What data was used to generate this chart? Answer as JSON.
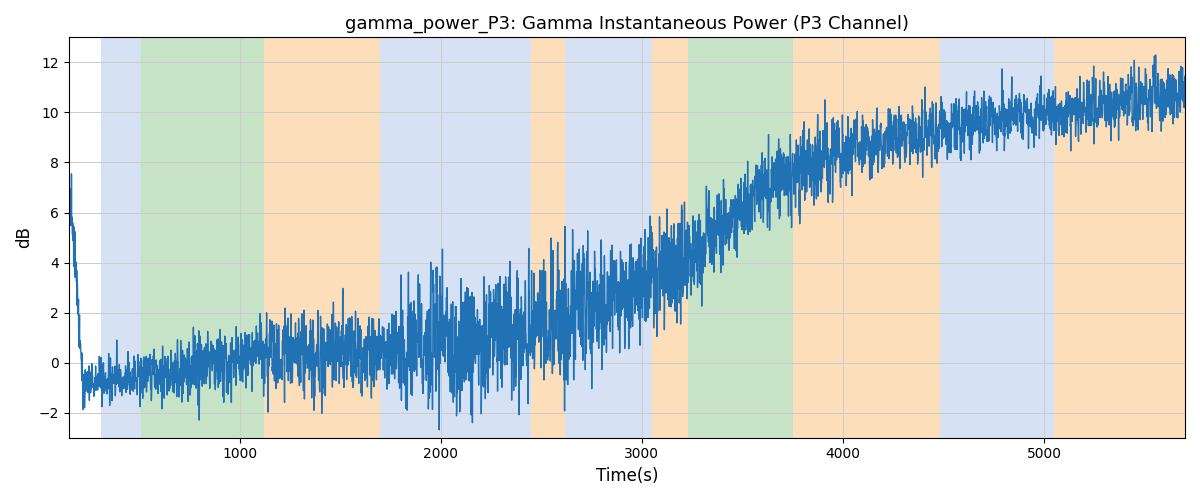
{
  "title": "gamma_power_P3: Gamma Instantaneous Power (P3 Channel)",
  "xlabel": "Time(s)",
  "ylabel": "dB",
  "xlim": [
    150,
    5700
  ],
  "ylim": [
    -3.0,
    13.0
  ],
  "yticks": [
    -2,
    0,
    2,
    4,
    6,
    8,
    10,
    12
  ],
  "line_color": "#2171b5",
  "line_width": 1.0,
  "bands": [
    {
      "xmin": 310,
      "xmax": 510,
      "color": "#AEC6E8",
      "alpha": 0.5
    },
    {
      "xmin": 510,
      "xmax": 1120,
      "color": "#90C990",
      "alpha": 0.5
    },
    {
      "xmin": 1120,
      "xmax": 1700,
      "color": "#FBBF77",
      "alpha": 0.5
    },
    {
      "xmin": 1700,
      "xmax": 2450,
      "color": "#AEC6E8",
      "alpha": 0.5
    },
    {
      "xmin": 2450,
      "xmax": 2620,
      "color": "#FBBF77",
      "alpha": 0.5
    },
    {
      "xmin": 2620,
      "xmax": 3050,
      "color": "#AEC6E8",
      "alpha": 0.5
    },
    {
      "xmin": 3050,
      "xmax": 3230,
      "color": "#FBBF77",
      "alpha": 0.5
    },
    {
      "xmin": 3230,
      "xmax": 3750,
      "color": "#90C990",
      "alpha": 0.5
    },
    {
      "xmin": 3750,
      "xmax": 4480,
      "color": "#FBBF77",
      "alpha": 0.5
    },
    {
      "xmin": 4480,
      "xmax": 5050,
      "color": "#AEC6E8",
      "alpha": 0.5
    },
    {
      "xmin": 5050,
      "xmax": 5700,
      "color": "#FBBF77",
      "alpha": 0.5
    }
  ],
  "trend_segments": [
    {
      "t0": 150,
      "t1": 220,
      "v0": 6.5,
      "v1": -2.2
    },
    {
      "t0": 220,
      "t1": 700,
      "v0": -0.8,
      "v1": -0.3
    },
    {
      "t0": 700,
      "t1": 1100,
      "v0": -0.3,
      "v1": 0.3
    },
    {
      "t0": 1100,
      "t1": 1700,
      "v0": 0.3,
      "v1": 0.5
    },
    {
      "t0": 1700,
      "t1": 2200,
      "v0": 0.5,
      "v1": 1.0
    },
    {
      "t0": 2200,
      "t1": 2800,
      "v0": 1.0,
      "v1": 2.5
    },
    {
      "t0": 2800,
      "t1": 3200,
      "v0": 2.5,
      "v1": 4.0
    },
    {
      "t0": 3200,
      "t1": 3600,
      "v0": 4.0,
      "v1": 7.0
    },
    {
      "t0": 3600,
      "t1": 4000,
      "v0": 7.0,
      "v1": 8.5
    },
    {
      "t0": 4000,
      "t1": 4600,
      "v0": 8.5,
      "v1": 9.5
    },
    {
      "t0": 4600,
      "t1": 5700,
      "v0": 9.5,
      "v1": 10.8
    }
  ],
  "noise_segments": [
    {
      "t0": 150,
      "t1": 220,
      "std": 1.0
    },
    {
      "t0": 220,
      "t1": 600,
      "std": 0.5
    },
    {
      "t0": 600,
      "t1": 1100,
      "std": 0.7
    },
    {
      "t0": 1100,
      "t1": 1800,
      "std": 1.0
    },
    {
      "t0": 1800,
      "t1": 2800,
      "std": 1.5
    },
    {
      "t0": 2800,
      "t1": 3300,
      "std": 1.2
    },
    {
      "t0": 3300,
      "t1": 4000,
      "std": 0.9
    },
    {
      "t0": 4000,
      "t1": 5700,
      "std": 0.7
    }
  ],
  "seed": 137,
  "n_points": 5550
}
